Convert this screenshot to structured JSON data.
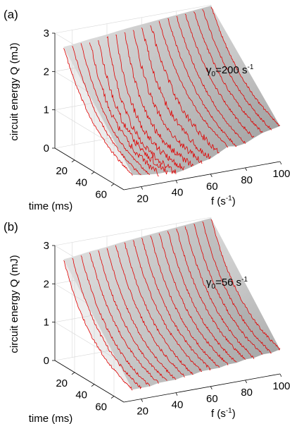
{
  "chart_data": [
    {
      "type": "surface3d",
      "panel_label": "(a)",
      "annotation": "γ0=200 s-1",
      "annotation_parts": {
        "symbol": "γ",
        "sub": "0",
        "main": "=200 s",
        "sup": "-1"
      },
      "zlabel": "circuit energy Q (mJ)",
      "xlabel": "time (ms)",
      "ylabel_main": "f (s",
      "ylabel_sup": "-1",
      "ylabel_close": ")",
      "z_ticks": [
        "0",
        "1",
        "2",
        "3"
      ],
      "time_ticks": [
        "20",
        "40",
        "60"
      ],
      "f_ticks": [
        "20",
        "40",
        "60",
        "80",
        "100"
      ],
      "zlim": [
        0,
        3
      ],
      "time_lim": [
        0,
        70
      ],
      "f_lim": [
        10,
        100
      ],
      "series_note": "red traces at f = 15, 20, 25 ... 100 s-1",
      "f_values": [
        15,
        20,
        25,
        30,
        35,
        40,
        45,
        50,
        55,
        60,
        65,
        70,
        75,
        80,
        85,
        90,
        95,
        100
      ],
      "start_energy_mJ": [
        2.6,
        2.62,
        2.65,
        2.68,
        2.7,
        2.72,
        2.75,
        2.78,
        2.8,
        2.82,
        2.84,
        2.86,
        2.88,
        2.9,
        2.92,
        2.94,
        2.96,
        2.98
      ],
      "end_energy_mJ": [
        0.05,
        0.05,
        0.1,
        0.15,
        0.2,
        0.15,
        0.2,
        0.25,
        0.3,
        0.3,
        0.35,
        0.4,
        0.3,
        0.3,
        0.4,
        0.5,
        0.55,
        0.6
      ],
      "grid": true
    },
    {
      "type": "surface3d",
      "panel_label": "(b)",
      "annotation": "γ0=56 s-1",
      "annotation_parts": {
        "symbol": "γ",
        "sub": "0",
        "main": "=56 s",
        "sup": "-1"
      },
      "zlabel": "circuit energy Q (mJ)",
      "xlabel": "time (ms)",
      "ylabel_main": "f (s",
      "ylabel_sup": "-1",
      "ylabel_close": ")",
      "z_ticks": [
        "0",
        "1",
        "2",
        "3"
      ],
      "time_ticks": [
        "20",
        "40",
        "60"
      ],
      "f_ticks": [
        "20",
        "40",
        "60",
        "80",
        "100"
      ],
      "zlim": [
        0,
        3
      ],
      "time_lim": [
        0,
        70
      ],
      "f_lim": [
        10,
        100
      ],
      "series_note": "red traces at f = 15, 20, 25 ... 100 s-1",
      "f_values": [
        15,
        20,
        25,
        30,
        35,
        40,
        45,
        50,
        55,
        60,
        65,
        70,
        75,
        80,
        85,
        90,
        95,
        100
      ],
      "start_energy_mJ": [
        2.6,
        2.62,
        2.65,
        2.68,
        2.7,
        2.72,
        2.75,
        2.78,
        2.8,
        2.82,
        2.84,
        2.86,
        2.88,
        2.9,
        2.92,
        2.94,
        2.96,
        2.98
      ],
      "end_energy_mJ": [
        0.05,
        0.05,
        0.05,
        0.1,
        0.1,
        0.1,
        0.15,
        0.15,
        0.2,
        0.2,
        0.2,
        0.25,
        0.25,
        0.3,
        0.3,
        0.35,
        0.35,
        0.4
      ],
      "grid": true
    }
  ],
  "colors": {
    "trace": "#e00000",
    "surface_dark": "#a0a0a0",
    "surface_light": "#eeeeee",
    "axis": "#000000",
    "grid": "#d8d8d8"
  }
}
